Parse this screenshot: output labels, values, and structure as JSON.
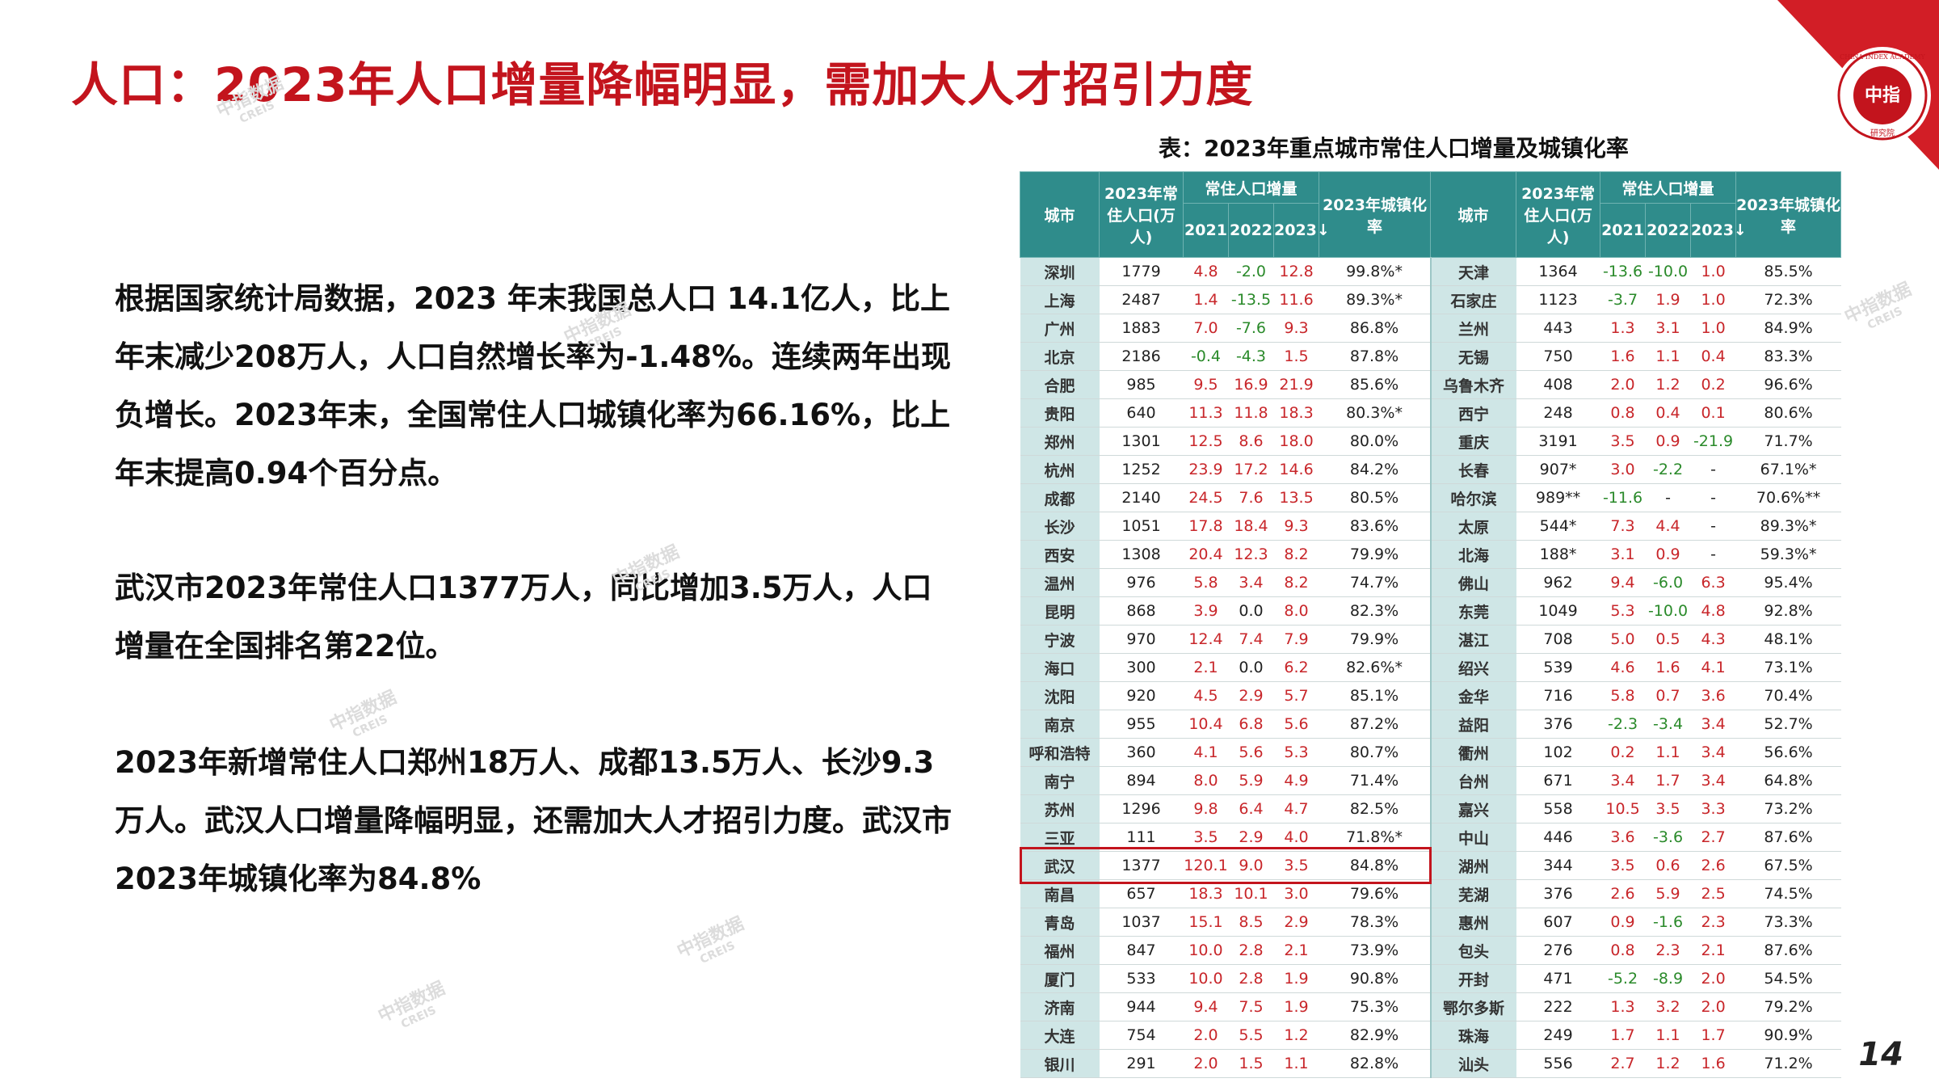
{
  "title": "人口：2023年人口增量降幅明显，需加大人才招引力度",
  "logo": {
    "main": "中指",
    "sub": "研究院",
    "ring": "CHINA INDEX ACADEMY"
  },
  "paragraphs": [
    "根据国家统计局数据，2023 年末我国总人口 14.1亿人，比上年末减少208万人，人口自然增长率为-1.48%。连续两年出现负增长。2023年末，全国常住人口城镇化率为66.16%，比上年末提高0.94个百分点。",
    "武汉市2023年常住人口1377万人，同比增加3.5万人，人口增量在全国排名第22位。",
    "2023年新增常住人口郑州18万人、成都13.5万人、长沙9.3万人。武汉人口增量降幅明显，还需加大人才招引力度。武汉市2023年城镇化率为84.8%"
  ],
  "watermark": {
    "main": "中指数据",
    "sub": "CREIS"
  },
  "table_caption": "表：2023年重点城市常住人口增量及城镇化率",
  "table_headers": {
    "city": "城市",
    "pop": "2023年常住人口(万人)",
    "inc": "常住人口增量",
    "y2021": "2021",
    "y2022": "2022",
    "y2023": "2023↓",
    "urban": "2023年城镇化率"
  },
  "left_rows": [
    [
      "深圳",
      "1779",
      "4.8",
      "-2.0",
      "12.8",
      "99.8%*"
    ],
    [
      "上海",
      "2487",
      "1.4",
      "-13.5",
      "11.6",
      "89.3%*"
    ],
    [
      "广州",
      "1883",
      "7.0",
      "-7.6",
      "9.3",
      "86.8%"
    ],
    [
      "北京",
      "2186",
      "-0.4",
      "-4.3",
      "1.5",
      "87.8%"
    ],
    [
      "合肥",
      "985",
      "9.5",
      "16.9",
      "21.9",
      "85.6%"
    ],
    [
      "贵阳",
      "640",
      "11.3",
      "11.8",
      "18.3",
      "80.3%*"
    ],
    [
      "郑州",
      "1301",
      "12.5",
      "8.6",
      "18.0",
      "80.0%"
    ],
    [
      "杭州",
      "1252",
      "23.9",
      "17.2",
      "14.6",
      "84.2%"
    ],
    [
      "成都",
      "2140",
      "24.5",
      "7.6",
      "13.5",
      "80.5%"
    ],
    [
      "长沙",
      "1051",
      "17.8",
      "18.4",
      "9.3",
      "83.6%"
    ],
    [
      "西安",
      "1308",
      "20.4",
      "12.3",
      "8.2",
      "79.9%"
    ],
    [
      "温州",
      "976",
      "5.8",
      "3.4",
      "8.2",
      "74.7%"
    ],
    [
      "昆明",
      "868",
      "3.9",
      "0.0",
      "8.0",
      "82.3%"
    ],
    [
      "宁波",
      "970",
      "12.4",
      "7.4",
      "7.9",
      "79.9%"
    ],
    [
      "海口",
      "300",
      "2.1",
      "0.0",
      "6.2",
      "82.6%*"
    ],
    [
      "沈阳",
      "920",
      "4.5",
      "2.9",
      "5.7",
      "85.1%"
    ],
    [
      "南京",
      "955",
      "10.4",
      "6.8",
      "5.6",
      "87.2%"
    ],
    [
      "呼和浩特",
      "360",
      "4.1",
      "5.6",
      "5.3",
      "80.7%"
    ],
    [
      "南宁",
      "894",
      "8.0",
      "5.9",
      "4.9",
      "71.4%"
    ],
    [
      "苏州",
      "1296",
      "9.8",
      "6.4",
      "4.7",
      "82.5%"
    ],
    [
      "三亚",
      "111",
      "3.5",
      "2.9",
      "4.0",
      "71.8%*"
    ],
    [
      "武汉",
      "1377",
      "120.1",
      "9.0",
      "3.5",
      "84.8%"
    ],
    [
      "南昌",
      "657",
      "18.3",
      "10.1",
      "3.0",
      "79.6%"
    ],
    [
      "青岛",
      "1037",
      "15.1",
      "8.5",
      "2.9",
      "78.3%"
    ],
    [
      "福州",
      "847",
      "10.0",
      "2.8",
      "2.1",
      "73.9%"
    ],
    [
      "厦门",
      "533",
      "10.0",
      "2.8",
      "1.9",
      "90.8%"
    ],
    [
      "济南",
      "944",
      "9.4",
      "7.5",
      "1.9",
      "75.3%"
    ],
    [
      "大连",
      "754",
      "2.0",
      "5.5",
      "1.2",
      "82.9%"
    ],
    [
      "银川",
      "291",
      "2.0",
      "1.5",
      "1.1",
      "82.8%"
    ]
  ],
  "right_rows": [
    [
      "天津",
      "1364",
      "-13.6",
      "-10.0",
      "1.0",
      "85.5%"
    ],
    [
      "石家庄",
      "1123",
      "-3.7",
      "1.9",
      "1.0",
      "72.3%"
    ],
    [
      "兰州",
      "443",
      "1.3",
      "3.1",
      "1.0",
      "84.9%"
    ],
    [
      "无锡",
      "750",
      "1.6",
      "1.1",
      "0.4",
      "83.3%"
    ],
    [
      "乌鲁木齐",
      "408",
      "2.0",
      "1.2",
      "0.2",
      "96.6%"
    ],
    [
      "西宁",
      "248",
      "0.8",
      "0.4",
      "0.1",
      "80.6%"
    ],
    [
      "重庆",
      "3191",
      "3.5",
      "0.9",
      "-21.9",
      "71.7%"
    ],
    [
      "长春",
      "907*",
      "3.0",
      "-2.2",
      "-",
      "67.1%*"
    ],
    [
      "哈尔滨",
      "989**",
      "-11.6",
      "-",
      "-",
      "70.6%**"
    ],
    [
      "太原",
      "544*",
      "7.3",
      "4.4",
      "-",
      "89.3%*"
    ],
    [
      "北海",
      "188*",
      "3.1",
      "0.9",
      "-",
      "59.3%*"
    ],
    [
      "佛山",
      "962",
      "9.4",
      "-6.0",
      "6.3",
      "95.4%"
    ],
    [
      "东莞",
      "1049",
      "5.3",
      "-10.0",
      "4.8",
      "92.8%"
    ],
    [
      "湛江",
      "708",
      "5.0",
      "0.5",
      "4.3",
      "48.1%"
    ],
    [
      "绍兴",
      "539",
      "4.6",
      "1.6",
      "4.1",
      "73.1%"
    ],
    [
      "金华",
      "716",
      "5.8",
      "0.7",
      "3.6",
      "70.4%"
    ],
    [
      "益阳",
      "376",
      "-2.3",
      "-3.4",
      "3.4",
      "52.7%"
    ],
    [
      "衢州",
      "102",
      "0.2",
      "1.1",
      "3.4",
      "56.6%"
    ],
    [
      "台州",
      "671",
      "3.4",
      "1.7",
      "3.4",
      "64.8%"
    ],
    [
      "嘉兴",
      "558",
      "10.5",
      "3.5",
      "3.3",
      "73.2%"
    ],
    [
      "中山",
      "446",
      "3.6",
      "-3.6",
      "2.7",
      "87.6%"
    ],
    [
      "湖州",
      "344",
      "3.5",
      "0.6",
      "2.6",
      "67.5%"
    ],
    [
      "芜湖",
      "376",
      "2.6",
      "5.9",
      "2.5",
      "74.5%"
    ],
    [
      "惠州",
      "607",
      "0.9",
      "-1.6",
      "2.3",
      "73.3%"
    ],
    [
      "包头",
      "276",
      "0.8",
      "2.3",
      "2.1",
      "87.6%"
    ],
    [
      "开封",
      "471",
      "-5.2",
      "-8.9",
      "2.0",
      "54.5%"
    ],
    [
      "鄂尔多斯",
      "222",
      "1.3",
      "3.2",
      "2.0",
      "79.2%"
    ],
    [
      "珠海",
      "249",
      "1.7",
      "1.1",
      "1.7",
      "90.9%"
    ],
    [
      "汕头",
      "556",
      "2.7",
      "1.2",
      "1.6",
      "71.2%"
    ]
  ],
  "page_number": "14"
}
